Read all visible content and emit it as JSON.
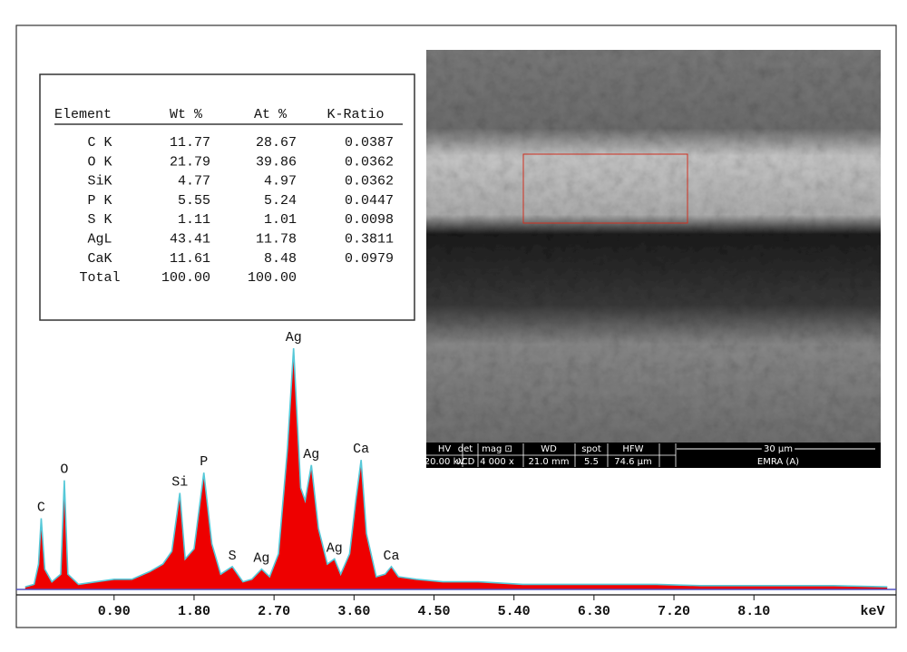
{
  "table": {
    "header": [
      "Element",
      "Wt %",
      "At %",
      "K-Ratio"
    ],
    "rows": [
      [
        "C K",
        "11.77",
        "28.67",
        "0.0387"
      ],
      [
        "O K",
        "21.79",
        "39.86",
        "0.0362"
      ],
      [
        "SiK",
        "4.77",
        "4.97",
        "0.0362"
      ],
      [
        "P K",
        "5.55",
        "5.24",
        "0.0447"
      ],
      [
        "S K",
        "1.11",
        "1.01",
        "0.0098"
      ],
      [
        "AgL",
        "43.41",
        "11.78",
        "0.3811"
      ],
      [
        "CaK",
        "11.61",
        "8.48",
        "0.0979"
      ],
      [
        "Total",
        "100.00",
        "100.00"
      ]
    ]
  },
  "sem_bar": {
    "top": [
      "HV",
      "det",
      "mag ⊡",
      "WD",
      "spot",
      "HFW",
      "30 µm"
    ],
    "bottom": [
      "20.00 kV",
      "vCD",
      "4 000 x",
      "21.0 mm",
      "5.5",
      "74.6 µm",
      "EMRA (A)"
    ]
  },
  "chart_data": {
    "type": "area",
    "x_label": "keV",
    "x": [
      -0.1,
      0.0,
      0.05,
      0.08,
      0.12,
      0.2,
      0.3,
      0.34,
      0.38,
      0.5,
      0.7,
      0.9,
      1.1,
      1.3,
      1.45,
      1.55,
      1.64,
      1.7,
      1.8,
      1.91,
      2.0,
      2.1,
      2.23,
      2.35,
      2.45,
      2.56,
      2.65,
      2.75,
      2.85,
      2.92,
      3.0,
      3.05,
      3.12,
      3.2,
      3.3,
      3.38,
      3.45,
      3.55,
      3.62,
      3.68,
      3.74,
      3.85,
      3.95,
      4.02,
      4.1,
      4.3,
      4.6,
      5.0,
      5.5,
      6.0,
      6.5,
      7.0,
      7.5,
      8.0,
      8.5,
      9.0,
      9.6
    ],
    "values": [
      1,
      2,
      10,
      28,
      8,
      3,
      6,
      43,
      6,
      2,
      3,
      4,
      4,
      7,
      10,
      15,
      38,
      12,
      16,
      46,
      18,
      6,
      9,
      3,
      4,
      8,
      5,
      14,
      55,
      95,
      40,
      35,
      49,
      24,
      10,
      12,
      6,
      14,
      35,
      51,
      22,
      5,
      6,
      9,
      5,
      4,
      3,
      3,
      2,
      2,
      2,
      2,
      1.5,
      1.5,
      1.5,
      1.5,
      1
    ],
    "color": "#ee0000",
    "line_color": "#55c8d8",
    "xlim": [
      -0.2,
      9.7
    ],
    "ylim": [
      0,
      100
    ],
    "xticks": [
      {
        "value": 0.9,
        "label": "0.90"
      },
      {
        "value": 1.8,
        "label": "1.80"
      },
      {
        "value": 2.7,
        "label": "2.70"
      },
      {
        "value": 3.6,
        "label": "3.60"
      },
      {
        "value": 4.5,
        "label": "4.50"
      },
      {
        "value": 5.4,
        "label": "5.40"
      },
      {
        "value": 6.3,
        "label": "6.30"
      },
      {
        "value": 7.2,
        "label": "7.20"
      },
      {
        "value": 8.1,
        "label": "8.10"
      }
    ],
    "annotations": [
      {
        "text": "C",
        "x": 0.08,
        "y": 28
      },
      {
        "text": "O",
        "x": 0.34,
        "y": 43
      },
      {
        "text": "Si",
        "x": 1.64,
        "y": 38
      },
      {
        "text": "P",
        "x": 1.91,
        "y": 46
      },
      {
        "text": "S",
        "x": 2.23,
        "y": 9
      },
      {
        "text": "Ag",
        "x": 2.56,
        "y": 8
      },
      {
        "text": "Ag",
        "x": 2.92,
        "y": 95
      },
      {
        "text": "Ag",
        "x": 3.12,
        "y": 49
      },
      {
        "text": "Ag",
        "x": 3.38,
        "y": 12
      },
      {
        "text": "Ca",
        "x": 3.68,
        "y": 51
      },
      {
        "text": "Ca",
        "x": 4.02,
        "y": 9
      }
    ]
  }
}
